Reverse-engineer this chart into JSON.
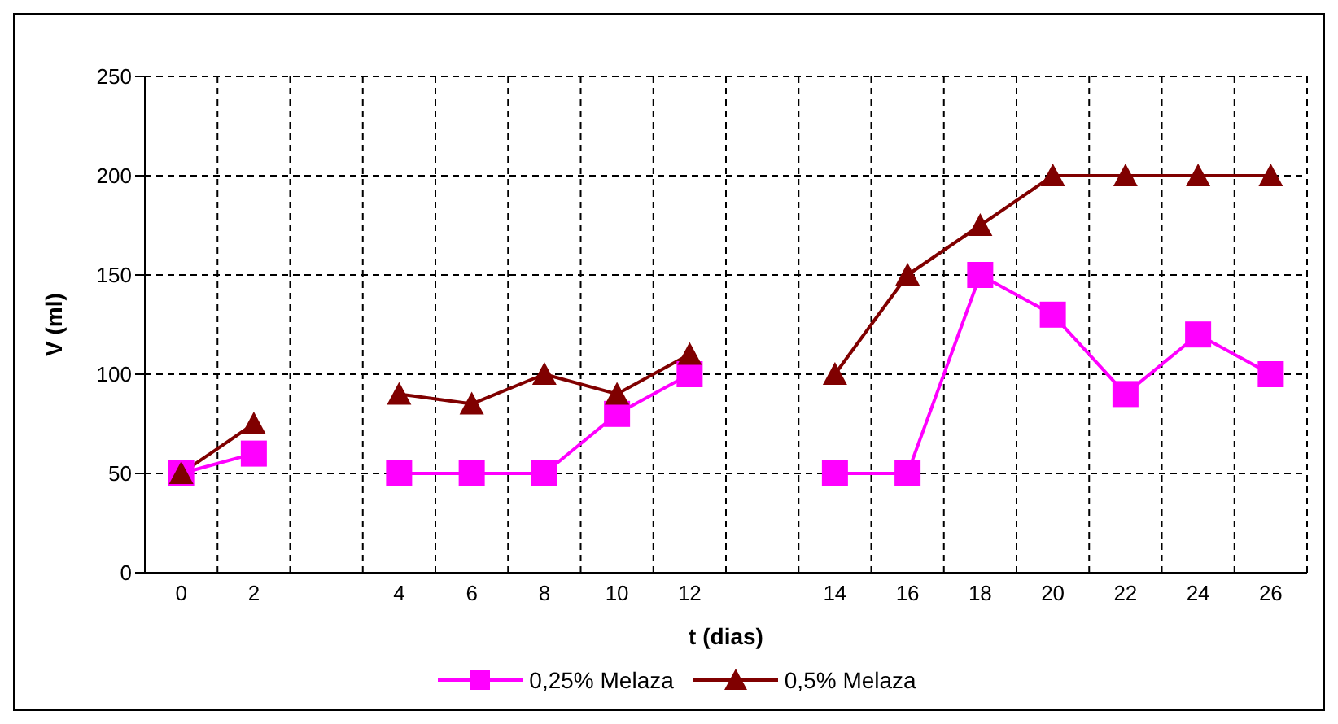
{
  "chart_data": {
    "type": "line",
    "xlabel": "t (dias)",
    "ylabel": "V (ml)",
    "categories": [
      "0",
      "2",
      null,
      "4",
      "6",
      "8",
      "10",
      "12",
      null,
      "14",
      "16",
      "18",
      "20",
      "22",
      "24",
      "26"
    ],
    "series": [
      {
        "name": "0,25% Melaza",
        "color": "#ff00ff",
        "marker": "square",
        "values": [
          50,
          60,
          null,
          50,
          50,
          50,
          80,
          100,
          null,
          50,
          50,
          150,
          130,
          90,
          120,
          100
        ]
      },
      {
        "name": "0,5% Melaza",
        "color": "#800000",
        "marker": "triangle",
        "values": [
          50,
          75,
          null,
          90,
          85,
          100,
          90,
          110,
          null,
          100,
          150,
          175,
          200,
          200,
          200,
          200
        ]
      }
    ],
    "ylim": [
      0,
      250
    ],
    "yticks": [
      0,
      50,
      100,
      150,
      200,
      250
    ],
    "grid": true,
    "legend": "bottom"
  }
}
